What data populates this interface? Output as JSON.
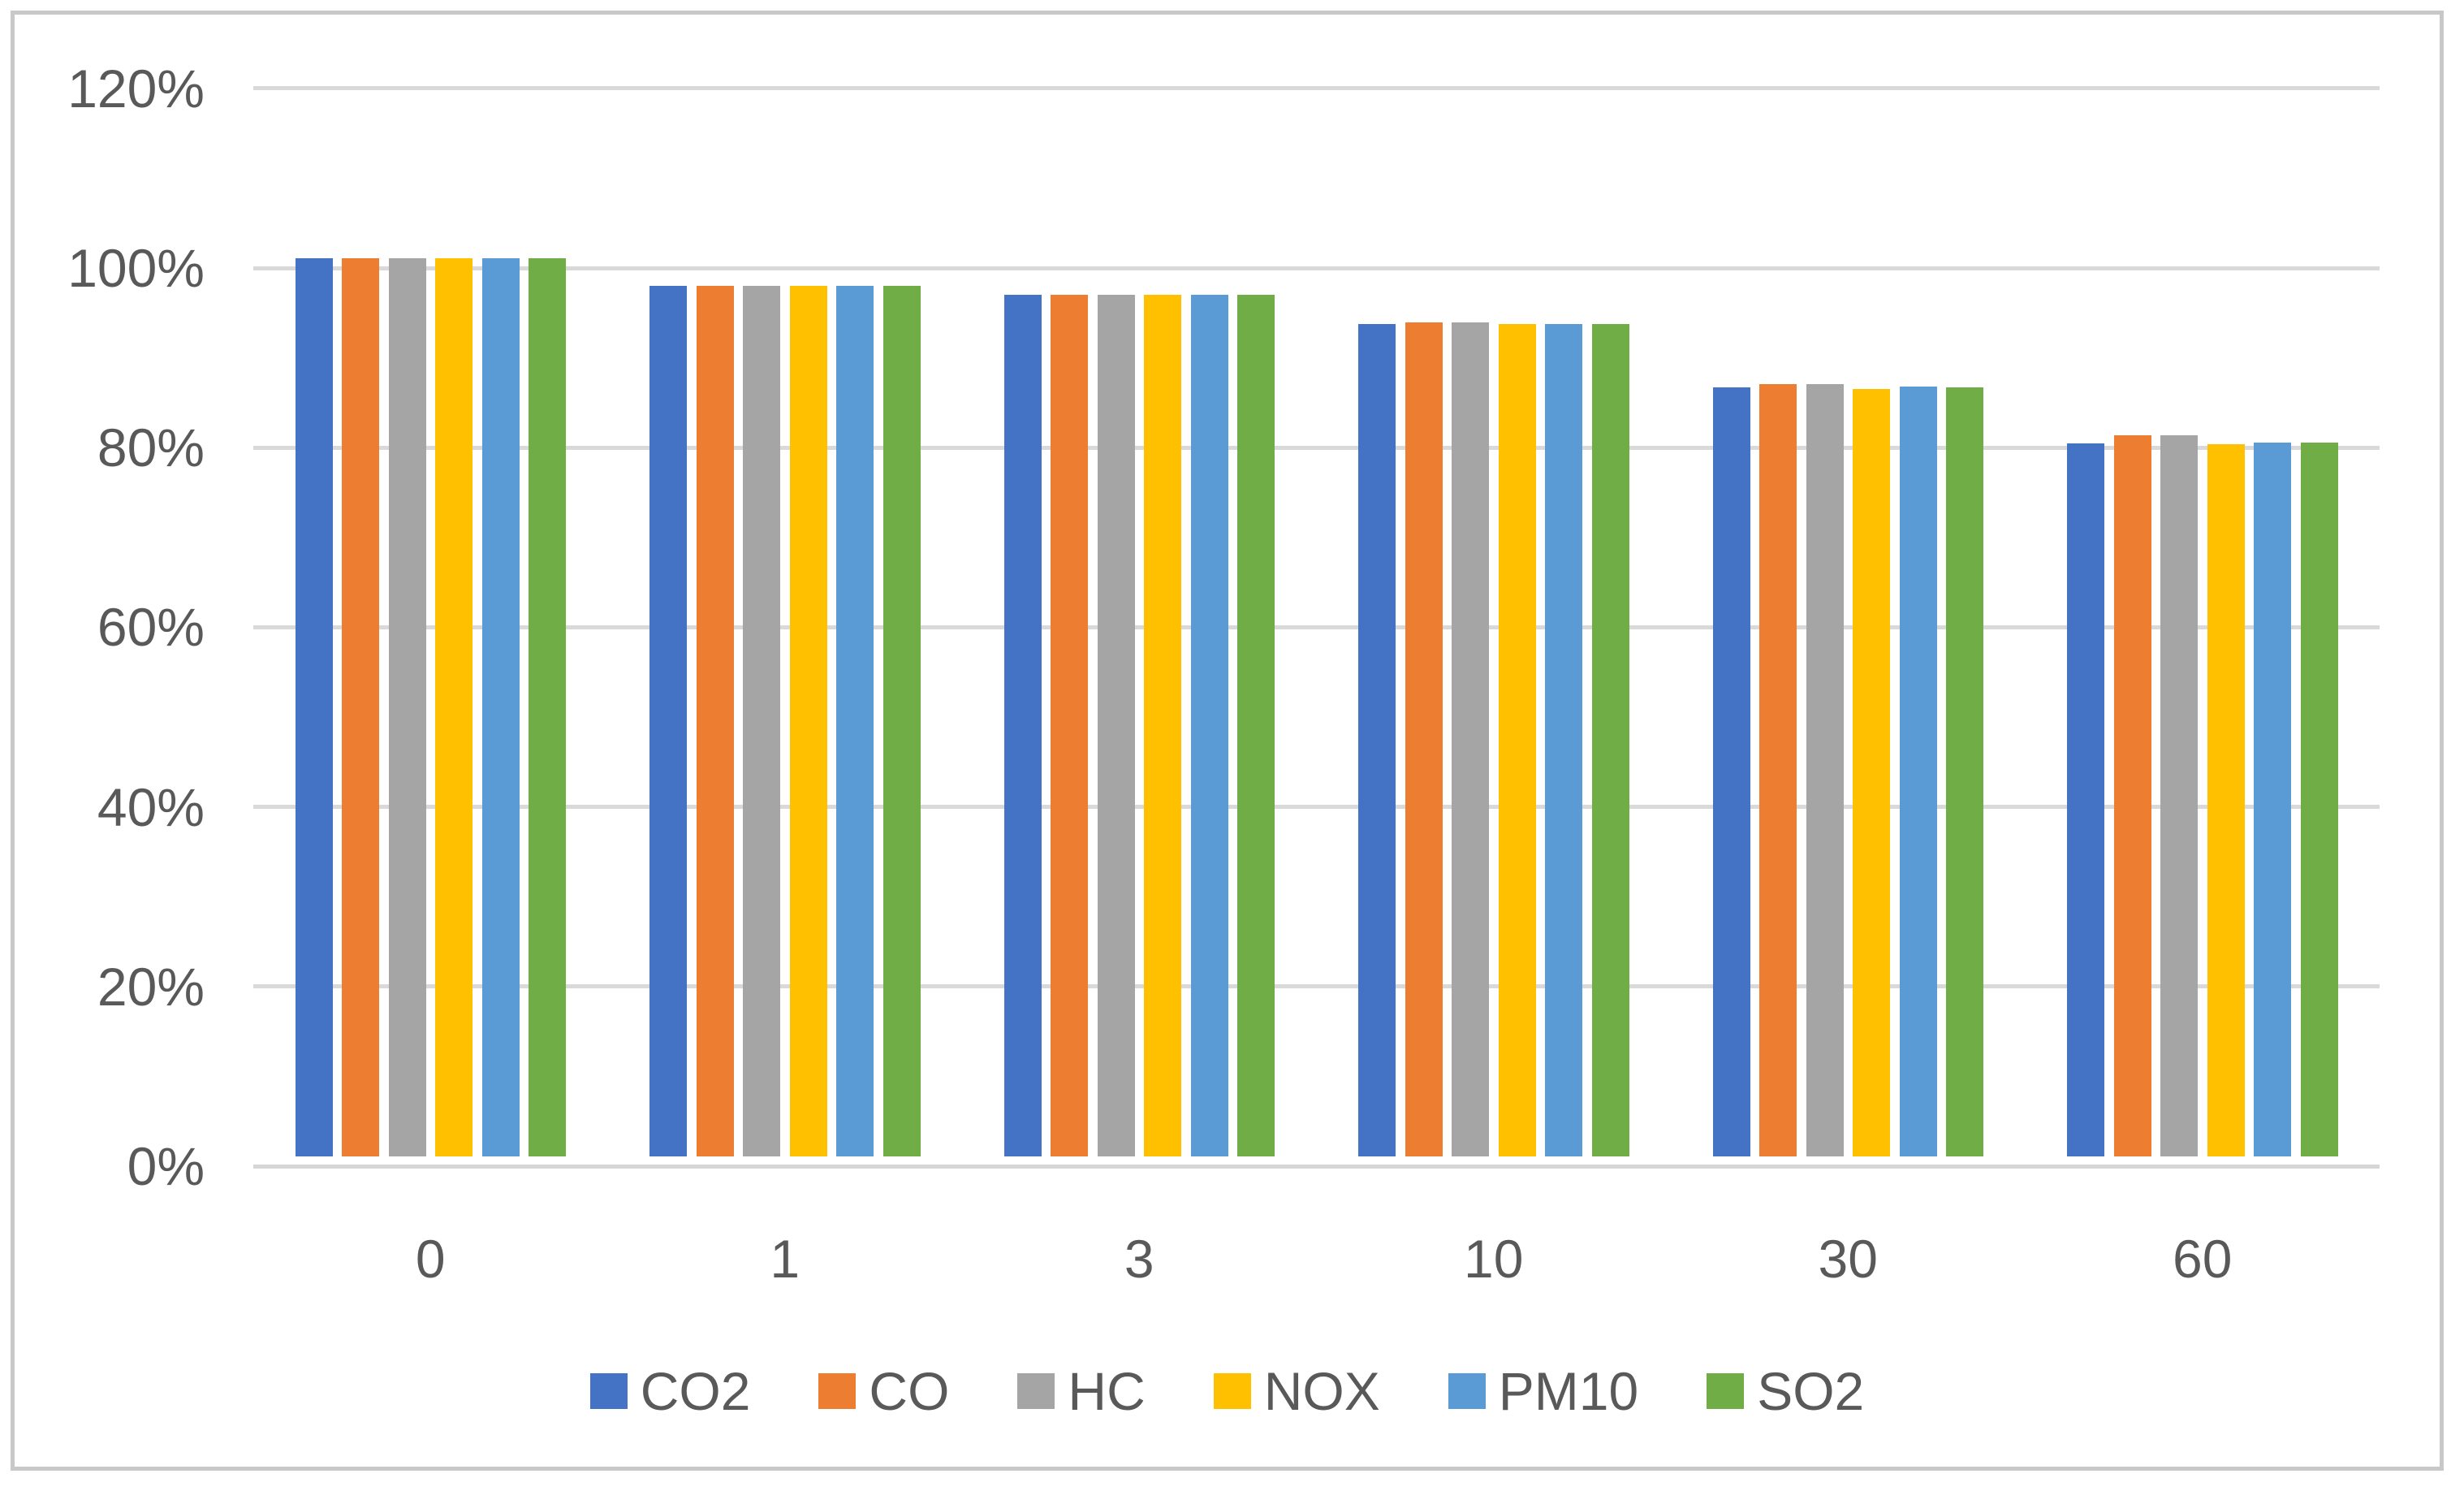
{
  "colors": {
    "background": "#FFFFFF",
    "frame_border": "#C8C8C8",
    "gridline": "#D9D9D9",
    "axis_line": "#D6D6D6",
    "text": "#595959"
  },
  "chart_data": {
    "type": "bar",
    "title": "",
    "xlabel": "",
    "ylabel": "",
    "grid": true,
    "categories": [
      "0",
      "1",
      "3",
      "10",
      "30",
      "60"
    ],
    "series": [
      {
        "name": "CO2",
        "color": "#4472C4",
        "values": [
          100,
          96.9,
          95.9,
          92.7,
          85.6,
          79.4
        ]
      },
      {
        "name": "CO",
        "color": "#ED7D31",
        "values": [
          100,
          96.9,
          95.9,
          92.9,
          86.0,
          80.3
        ]
      },
      {
        "name": "HC",
        "color": "#A5A5A5",
        "values": [
          100,
          96.9,
          95.9,
          92.9,
          86.0,
          80.3
        ]
      },
      {
        "name": "NOX",
        "color": "#FFC000",
        "values": [
          100,
          96.9,
          95.9,
          92.7,
          85.4,
          79.3
        ]
      },
      {
        "name": "PM10",
        "color": "#5B9BD5",
        "values": [
          100,
          96.9,
          95.9,
          92.7,
          85.7,
          79.5
        ]
      },
      {
        "name": "SO2",
        "color": "#70AD47",
        "values": [
          100,
          96.9,
          95.9,
          92.7,
          85.6,
          79.5
        ]
      }
    ],
    "y_axis": {
      "unit": "percent",
      "min": 0,
      "max": 120,
      "tick_values": [
        0,
        20,
        40,
        60,
        80,
        100,
        120
      ],
      "tick_labels": [
        "0%",
        "20%",
        "40%",
        "60%",
        "80%",
        "100%",
        "120%"
      ]
    },
    "legend": {
      "position": "bottom",
      "entries": [
        "CO2",
        "CO",
        "HC",
        "NOX",
        "PM10",
        "SO2"
      ]
    }
  }
}
